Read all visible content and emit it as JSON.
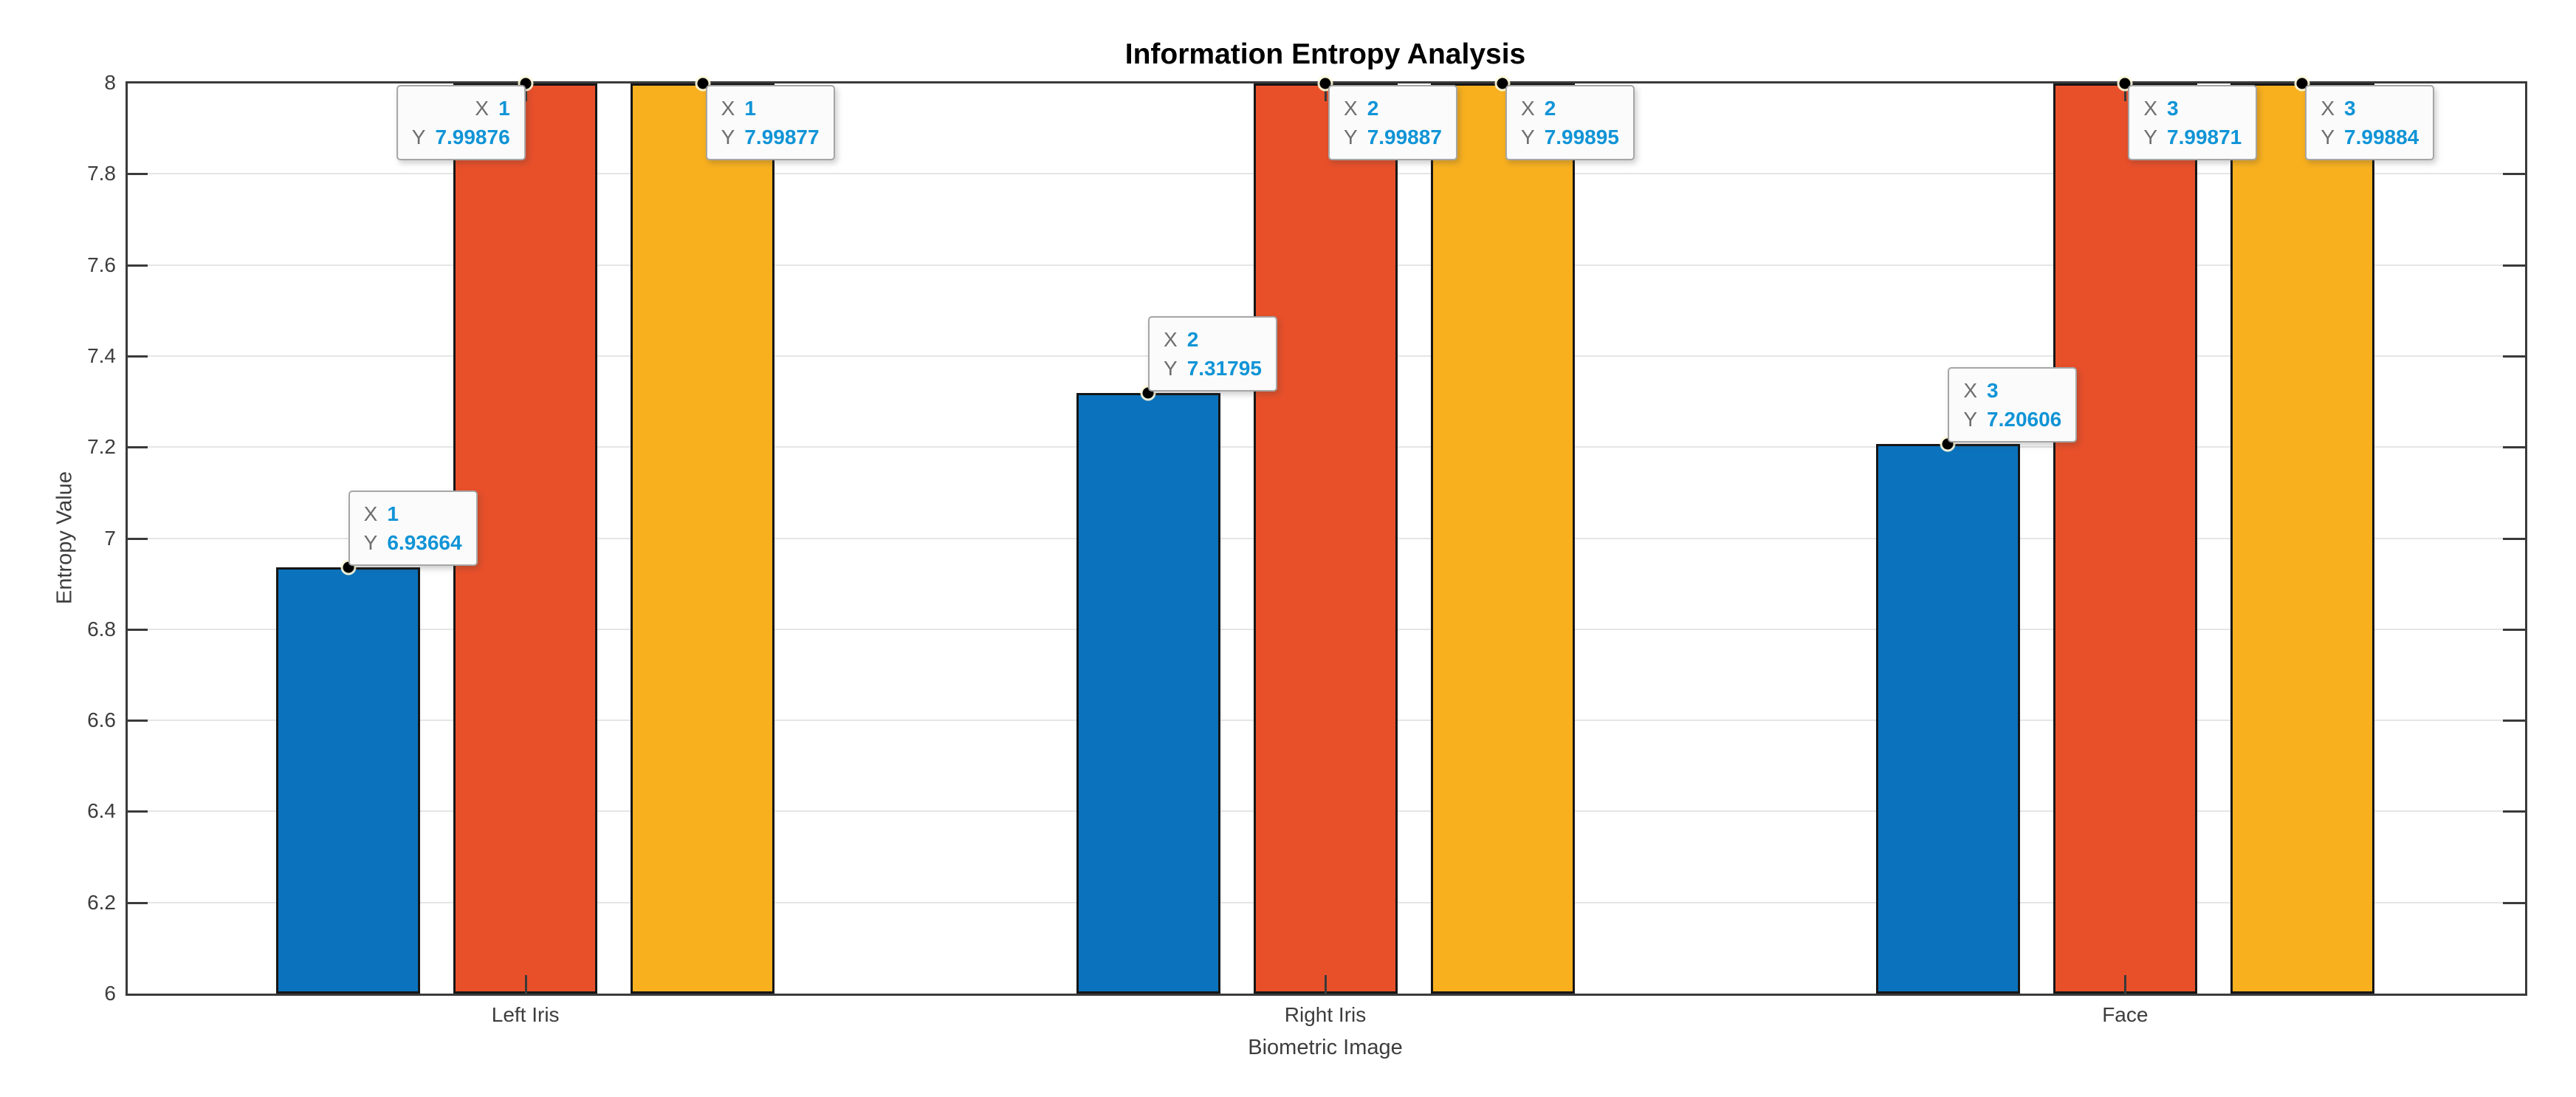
{
  "chart_data": {
    "type": "bar",
    "title": "Information Entropy Analysis",
    "xlabel": "Biometric Image",
    "ylabel": "Entropy Value",
    "categories": [
      "Left Iris",
      "Right Iris",
      "Face"
    ],
    "series": [
      {
        "name": "series-blue",
        "color": "#0b73bd",
        "values": [
          6.93664,
          7.31795,
          7.20606
        ]
      },
      {
        "name": "series-orange",
        "color": "#e8502a",
        "values": [
          7.99876,
          7.99887,
          7.99871
        ]
      },
      {
        "name": "series-yellow",
        "color": "#f8b01f",
        "values": [
          7.99877,
          7.99895,
          7.99884
        ]
      }
    ],
    "ylim": [
      6,
      8
    ],
    "yticks": [
      "6",
      "6.2",
      "6.4",
      "6.6",
      "6.8",
      "7",
      "7.2",
      "7.4",
      "7.6",
      "7.8",
      "8"
    ],
    "grid": true,
    "legend_position": "none",
    "datatips": [
      {
        "series": 0,
        "cat": 0,
        "x_label": "X",
        "x": "1",
        "y_label": "Y",
        "y": "6.93664",
        "placement": "above-right"
      },
      {
        "series": 1,
        "cat": 0,
        "x_label": "X",
        "x": "1",
        "y_label": "Y",
        "y": "7.99876",
        "placement": "left-of"
      },
      {
        "series": 2,
        "cat": 0,
        "x_label": "X",
        "x": "1",
        "y_label": "Y",
        "y": "7.99877",
        "placement": "right-of"
      },
      {
        "series": 0,
        "cat": 1,
        "x_label": "X",
        "x": "2",
        "y_label": "Y",
        "y": "7.31795",
        "placement": "above-right"
      },
      {
        "series": 1,
        "cat": 1,
        "x_label": "X",
        "x": "2",
        "y_label": "Y",
        "y": "7.99887",
        "placement": "right-of"
      },
      {
        "series": 2,
        "cat": 1,
        "x_label": "X",
        "x": "2",
        "y_label": "Y",
        "y": "7.99895",
        "placement": "right-of"
      },
      {
        "series": 0,
        "cat": 2,
        "x_label": "X",
        "x": "3",
        "y_label": "Y",
        "y": "7.20606",
        "placement": "above-right"
      },
      {
        "series": 1,
        "cat": 2,
        "x_label": "X",
        "x": "3",
        "y_label": "Y",
        "y": "7.99871",
        "placement": "right-of"
      },
      {
        "series": 2,
        "cat": 2,
        "x_label": "X",
        "x": "3",
        "y_label": "Y",
        "y": "7.99884",
        "placement": "right-of"
      }
    ],
    "colors": {
      "axis": "#3a3a3a",
      "grid": "#e5e5e5",
      "bar_edge": "#161616",
      "datatip_value": "#1094d6",
      "datatip_label": "#6e6e6e",
      "datatip_border": "#a6a6a6",
      "datatip_bg": "#fbfbfb"
    }
  }
}
